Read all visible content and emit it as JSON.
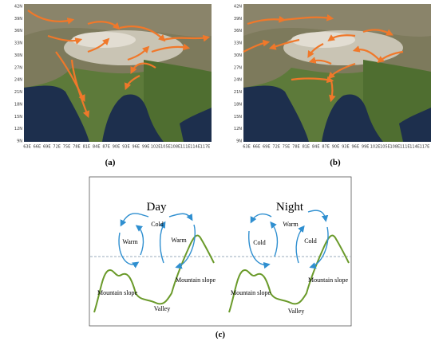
{
  "axes": {
    "lat": [
      "42N",
      "39N",
      "36N",
      "33N",
      "30N",
      "27N",
      "24N",
      "21N",
      "18N",
      "15N",
      "12N",
      "9N"
    ],
    "lon": [
      "63E",
      "66E",
      "69E",
      "72E",
      "75E",
      "78E",
      "81E",
      "84E",
      "87E",
      "90E",
      "93E",
      "96E",
      "99E",
      "102E",
      "105E",
      "108E",
      "111E",
      "114E",
      "117E"
    ]
  },
  "panels": [
    {
      "label": "(a)"
    },
    {
      "label": "(b)"
    }
  ],
  "diagram": {
    "label": "(c)",
    "day": {
      "title": "Day",
      "top": "Cold",
      "left": "Warm",
      "right": "Warm",
      "left_slope": "Mountain slope",
      "right_slope": "Mountain slope",
      "valley": "Valley"
    },
    "night": {
      "title": "Night",
      "top": "Warm",
      "left": "Cold",
      "right": "Cold",
      "left_slope": "Mountain slope",
      "right_slope": "Mountain slope",
      "valley": "Valley"
    }
  }
}
